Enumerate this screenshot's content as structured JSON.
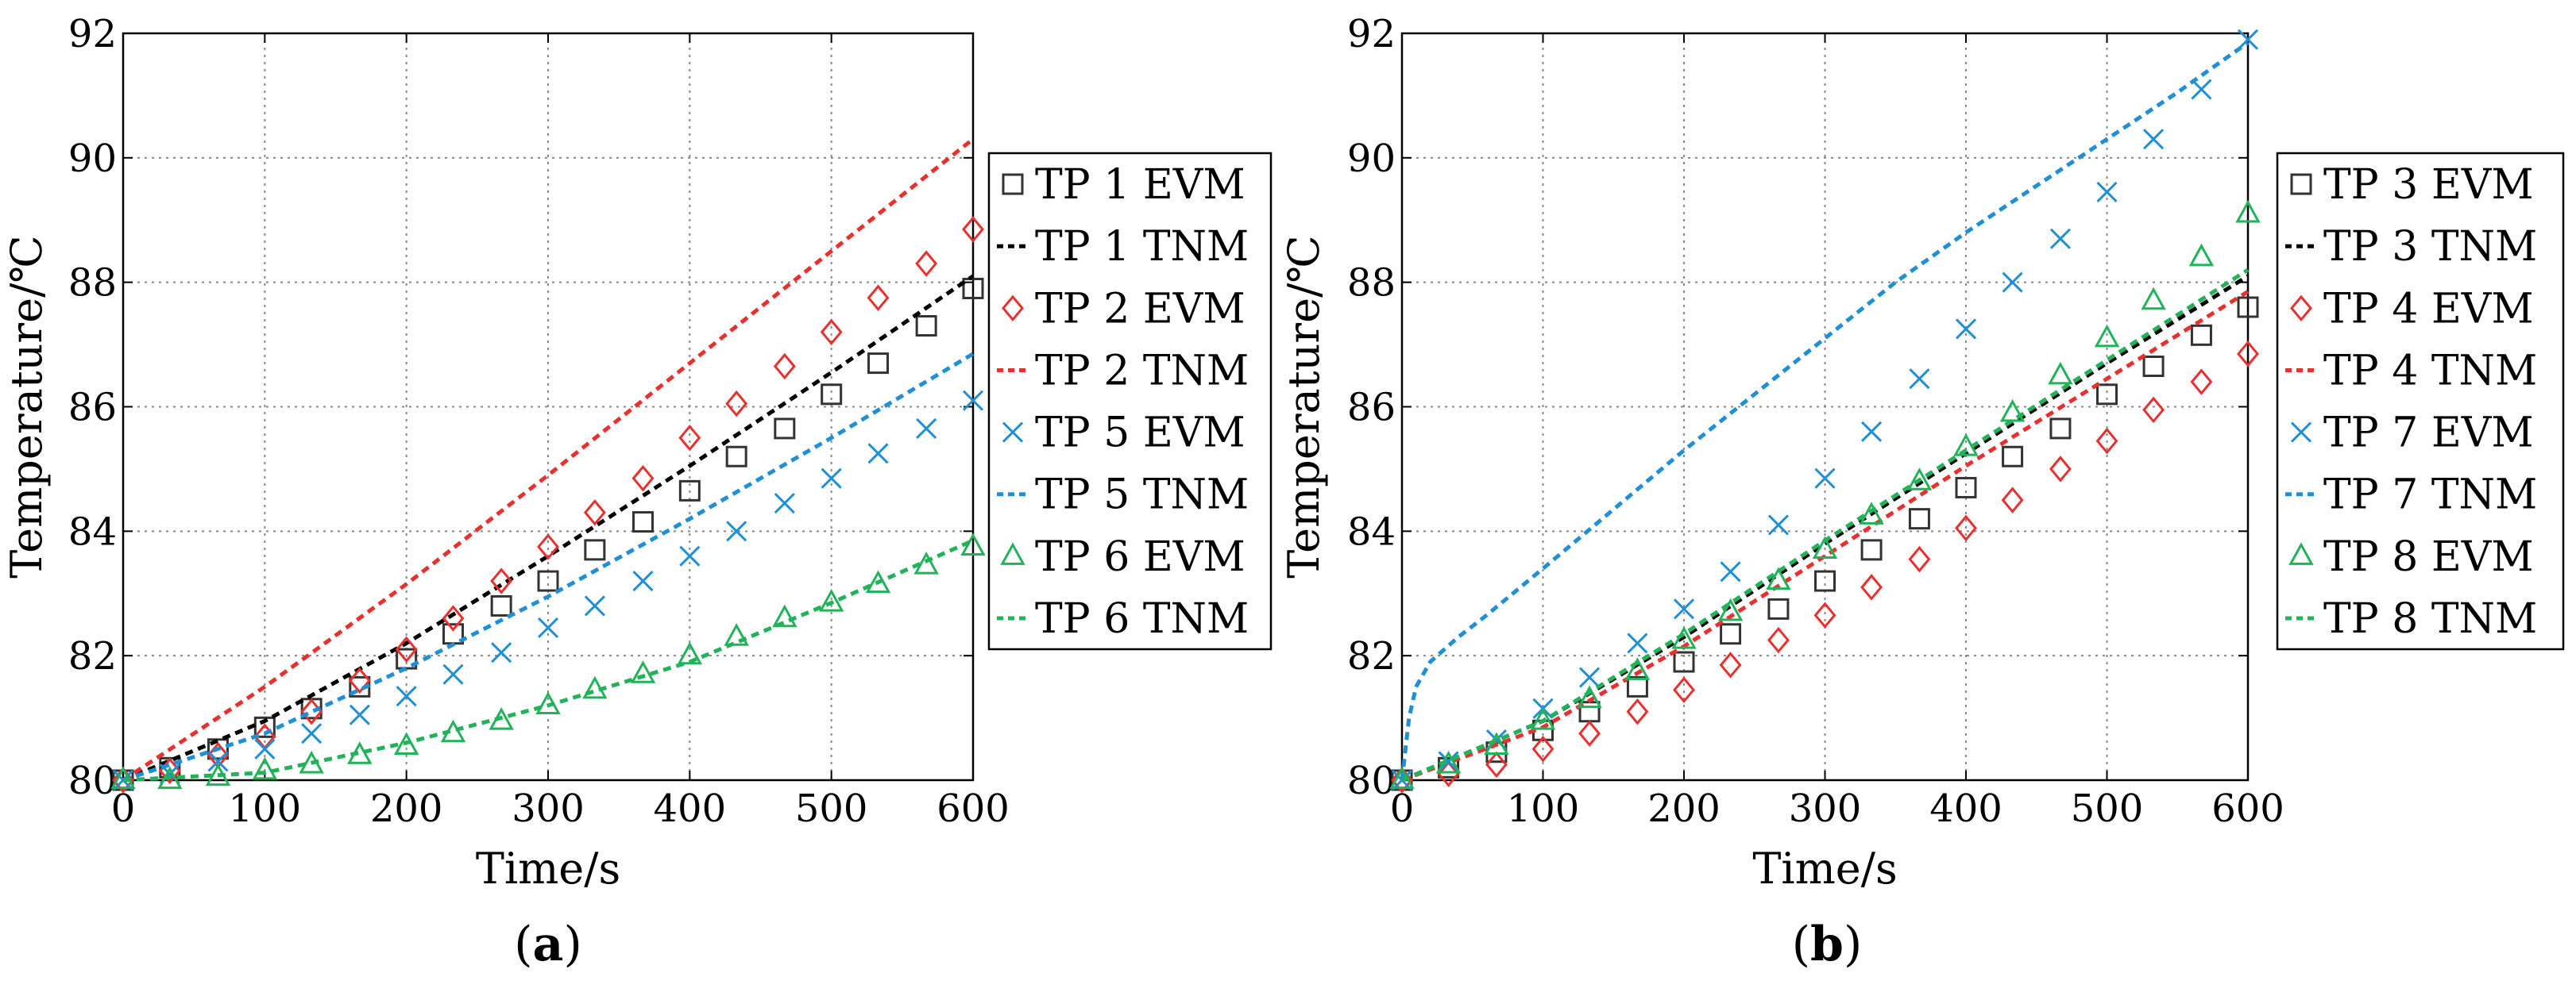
{
  "chart_data": [
    {
      "type": "scatter",
      "panel_label": "(a)",
      "panel_label_parts": {
        "open": "(",
        "letter": "a",
        "close": ")"
      },
      "xlabel": "Time/s",
      "ylabel": "Temperature/℃",
      "xlim": [
        0,
        600
      ],
      "ylim": [
        80,
        92
      ],
      "xticks": [
        0,
        100,
        200,
        300,
        400,
        500,
        600
      ],
      "yticks": [
        80,
        82,
        84,
        86,
        88,
        90,
        92
      ],
      "grid": true,
      "legend_position": "outside-right",
      "series": [
        {
          "name": "TP 1 EVM",
          "kind": "marker",
          "marker": "square",
          "color": "#333333",
          "x": [
            0,
            33,
            67,
            100,
            133,
            167,
            200,
            233,
            267,
            300,
            333,
            367,
            400,
            433,
            467,
            500,
            533,
            567,
            600
          ],
          "y": [
            80.0,
            80.2,
            80.5,
            80.85,
            81.15,
            81.5,
            81.95,
            82.35,
            82.8,
            83.2,
            83.7,
            84.15,
            84.65,
            85.2,
            85.65,
            86.2,
            86.7,
            87.3,
            87.9
          ]
        },
        {
          "name": "TP 1 TNM",
          "kind": "line",
          "color": "#000000",
          "x": [
            0,
            100,
            200,
            300,
            400,
            500,
            600
          ],
          "y": [
            80.0,
            80.95,
            82.2,
            83.6,
            85.05,
            86.55,
            88.1
          ]
        },
        {
          "name": "TP 2 EVM",
          "kind": "marker",
          "marker": "diamond",
          "color": "#e8312f",
          "x": [
            0,
            33,
            67,
            100,
            133,
            167,
            200,
            233,
            267,
            300,
            333,
            367,
            400,
            433,
            467,
            500,
            533,
            567,
            600
          ],
          "y": [
            80.0,
            80.15,
            80.4,
            80.7,
            81.1,
            81.6,
            82.1,
            82.6,
            83.2,
            83.75,
            84.3,
            84.85,
            85.5,
            86.05,
            86.65,
            87.2,
            87.75,
            88.3,
            88.85
          ]
        },
        {
          "name": "TP 2 TNM",
          "kind": "line",
          "color": "#e8312f",
          "x": [
            0,
            100,
            200,
            300,
            400,
            500,
            600
          ],
          "y": [
            80.0,
            81.5,
            83.15,
            84.9,
            86.7,
            88.5,
            90.3
          ]
        },
        {
          "name": "TP 5 EVM",
          "kind": "marker",
          "marker": "x",
          "color": "#1f8fd6",
          "x": [
            0,
            33,
            67,
            100,
            133,
            167,
            200,
            233,
            267,
            300,
            333,
            367,
            400,
            433,
            467,
            500,
            533,
            567,
            600
          ],
          "y": [
            80.0,
            80.1,
            80.3,
            80.5,
            80.75,
            81.05,
            81.35,
            81.7,
            82.05,
            82.45,
            82.8,
            83.2,
            83.6,
            84.0,
            84.45,
            84.85,
            85.25,
            85.65,
            86.1
          ]
        },
        {
          "name": "TP 5 TNM",
          "kind": "line",
          "color": "#1f8fd6",
          "x": [
            0,
            100,
            200,
            300,
            400,
            500,
            600
          ],
          "y": [
            80.0,
            80.75,
            81.8,
            82.95,
            84.2,
            85.5,
            86.85
          ]
        },
        {
          "name": "TP 6 EVM",
          "kind": "marker",
          "marker": "triangle",
          "color": "#22b35a",
          "x": [
            0,
            33,
            67,
            100,
            133,
            167,
            200,
            233,
            267,
            300,
            333,
            367,
            400,
            433,
            467,
            500,
            533,
            567,
            600
          ],
          "y": [
            80.0,
            80.0,
            80.05,
            80.15,
            80.25,
            80.4,
            80.55,
            80.75,
            80.95,
            81.2,
            81.45,
            81.7,
            82.0,
            82.3,
            82.6,
            82.85,
            83.15,
            83.45,
            83.75
          ]
        },
        {
          "name": "TP 6 TNM",
          "kind": "line",
          "color": "#22b35a",
          "x": [
            0,
            100,
            200,
            300,
            400,
            500,
            600
          ],
          "y": [
            80.0,
            80.12,
            80.6,
            81.2,
            81.9,
            82.85,
            83.85
          ]
        }
      ]
    },
    {
      "type": "scatter",
      "panel_label": "(b)",
      "panel_label_parts": {
        "open": "(",
        "letter": "b",
        "close": ")"
      },
      "xlabel": "Time/s",
      "ylabel": "Temperature/℃",
      "xlim": [
        0,
        600
      ],
      "ylim": [
        80,
        92
      ],
      "xticks": [
        0,
        100,
        200,
        300,
        400,
        500,
        600
      ],
      "yticks": [
        80,
        82,
        84,
        86,
        88,
        90,
        92
      ],
      "grid": true,
      "legend_position": "outside-right",
      "series": [
        {
          "name": "TP 3 EVM",
          "kind": "marker",
          "marker": "square",
          "color": "#333333",
          "x": [
            0,
            33,
            67,
            100,
            133,
            167,
            200,
            233,
            267,
            300,
            333,
            367,
            400,
            433,
            467,
            500,
            533,
            567,
            600
          ],
          "y": [
            80.0,
            80.2,
            80.45,
            80.8,
            81.1,
            81.5,
            81.9,
            82.35,
            82.75,
            83.2,
            83.7,
            84.2,
            84.7,
            85.2,
            85.65,
            86.2,
            86.65,
            87.15,
            87.6
          ]
        },
        {
          "name": "TP 3 TNM",
          "kind": "line",
          "color": "#000000",
          "x": [
            0,
            100,
            200,
            300,
            400,
            500,
            600
          ],
          "y": [
            80.0,
            80.95,
            82.3,
            83.8,
            85.25,
            86.7,
            88.1
          ]
        },
        {
          "name": "TP 4 EVM",
          "kind": "marker",
          "marker": "diamond",
          "color": "#e8312f",
          "x": [
            0,
            33,
            67,
            100,
            133,
            167,
            200,
            233,
            267,
            300,
            333,
            367,
            400,
            433,
            467,
            500,
            533,
            567,
            600
          ],
          "y": [
            80.0,
            80.1,
            80.25,
            80.5,
            80.75,
            81.1,
            81.45,
            81.85,
            82.25,
            82.65,
            83.1,
            83.55,
            84.05,
            84.5,
            85.0,
            85.45,
            85.95,
            86.4,
            86.85
          ]
        },
        {
          "name": "TP 4 TNM",
          "kind": "line",
          "color": "#e8312f",
          "x": [
            0,
            100,
            200,
            300,
            400,
            500,
            600
          ],
          "y": [
            80.0,
            80.85,
            82.15,
            83.6,
            85.05,
            86.45,
            87.85
          ]
        },
        {
          "name": "TP 7 EVM",
          "kind": "marker",
          "marker": "x",
          "color": "#1f8fd6",
          "x": [
            0,
            33,
            67,
            100,
            133,
            167,
            200,
            233,
            267,
            300,
            333,
            367,
            400,
            433,
            467,
            500,
            533,
            567,
            600
          ],
          "y": [
            80.0,
            80.3,
            80.65,
            81.15,
            81.65,
            82.2,
            82.75,
            83.35,
            84.1,
            84.85,
            85.6,
            86.45,
            87.25,
            88.0,
            88.7,
            89.45,
            90.3,
            91.1,
            91.9
          ]
        },
        {
          "name": "TP 7 TNM",
          "kind": "line",
          "color": "#1f8fd6",
          "x": [
            0,
            5,
            10,
            20,
            40,
            60,
            100,
            150,
            200,
            250,
            300,
            350,
            400,
            450,
            500,
            550,
            600
          ],
          "y": [
            80.0,
            81.0,
            81.5,
            81.9,
            82.3,
            82.65,
            83.4,
            84.35,
            85.3,
            86.2,
            87.1,
            88.0,
            88.8,
            89.55,
            90.3,
            91.05,
            91.85
          ]
        },
        {
          "name": "TP 8 EVM",
          "kind": "marker",
          "marker": "triangle",
          "color": "#22b35a",
          "x": [
            0,
            33,
            67,
            100,
            133,
            167,
            200,
            233,
            267,
            300,
            333,
            367,
            400,
            433,
            467,
            500,
            533,
            567,
            600
          ],
          "y": [
            80.0,
            80.25,
            80.55,
            80.95,
            81.3,
            81.75,
            82.25,
            82.7,
            83.2,
            83.7,
            84.25,
            84.8,
            85.35,
            85.9,
            86.5,
            87.1,
            87.7,
            88.4,
            89.1
          ]
        },
        {
          "name": "TP 8 TNM",
          "kind": "line",
          "color": "#22b35a",
          "x": [
            0,
            100,
            200,
            300,
            400,
            500,
            600
          ],
          "y": [
            80.0,
            80.95,
            82.35,
            83.85,
            85.3,
            86.75,
            88.2
          ]
        }
      ]
    }
  ]
}
